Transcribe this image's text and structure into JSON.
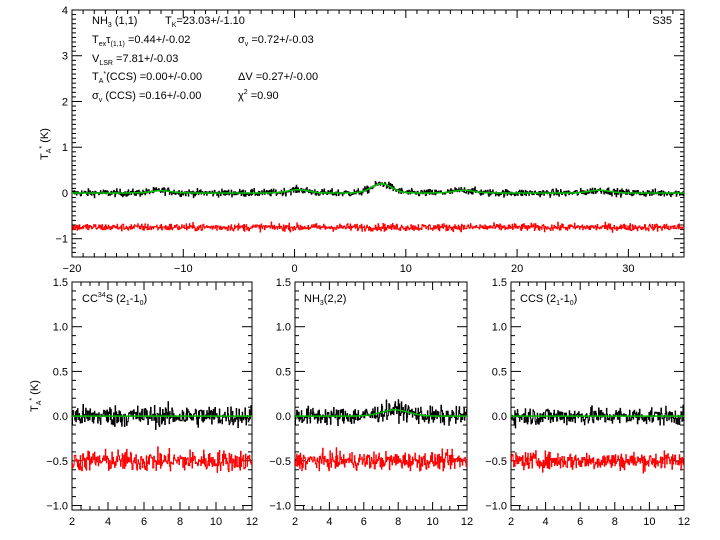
{
  "chart_data": [
    {
      "type": "line",
      "panel": "top",
      "source": "S35",
      "xlabel": "",
      "ylabel": "T_A* (K)",
      "xlim": [
        -20,
        35
      ],
      "ylim": [
        -1.4,
        4
      ],
      "xticks": [
        -20,
        -10,
        0,
        10,
        20,
        30
      ],
      "yticks": [
        -1,
        0,
        1,
        2,
        3,
        4
      ],
      "annotations": {
        "line": "NH",
        "line_sub": "3",
        "line_tail": " (1,1)",
        "tk": "T",
        "tk_sub": "K",
        "tk_val": "=23.03+/-1.10",
        "tex": "T",
        "tex_sub": "ex",
        "tau": "τ",
        "tau_sub": "(1,1)",
        "tex_val": " =0.44+/-0.02",
        "sigv": "σ",
        "sigv_sub": "v",
        "sigv_val": " =0.72+/-0.03",
        "vlsr": "V",
        "vlsr_sub": "LSR",
        "vlsr_val": " =7.81+/-0.03",
        "ta_ccs": "T",
        "ta_ccs_sub": "A",
        "ta_ccs_sup": "*",
        "ta_ccs_val": "(CCS) =0.00+/-0.00",
        "dv": "ΔV =0.27+/-0.00",
        "sig_ccs": "σ",
        "sig_ccs_sub": "v",
        "sig_ccs_val": " (CCS) =0.16+/-0.00",
        "chi": "χ",
        "chi_sup": "2",
        "chi_val": " =0.90"
      },
      "series": [
        {
          "name": "spectrum",
          "color": "#000000",
          "baseline": 0.0,
          "noise_rms": 0.04
        },
        {
          "name": "fit",
          "color": "#00c000",
          "components": [
            {
              "v": -12.0,
              "amp": 0.05,
              "width": 0.9
            },
            {
              "v": 0.3,
              "amp": 0.07,
              "width": 0.9
            },
            {
              "v": 7.81,
              "amp": 0.2,
              "width": 0.9
            },
            {
              "v": 15.2,
              "amp": 0.06,
              "width": 0.9
            },
            {
              "v": 27.4,
              "amp": 0.06,
              "width": 0.9
            }
          ]
        },
        {
          "name": "residual",
          "color": "#ff0000",
          "baseline": -0.75,
          "noise_rms": 0.04
        }
      ]
    },
    {
      "type": "line",
      "panel": "bottom-1",
      "title_main": "CC",
      "title_sup": "34",
      "title_mid": "S (2",
      "title_sub1": "1",
      "title_dash": "-1",
      "title_sub2": "0",
      "title_end": ")",
      "ylabel": "T_A* (K)",
      "xlim": [
        2,
        12
      ],
      "ylim": [
        -1.05,
        1.5
      ],
      "xticks": [
        2,
        4,
        6,
        8,
        10,
        12
      ],
      "yticks": [
        "-1.0",
        "-0.5",
        "0.0",
        "0.5",
        "1.0",
        "1.5"
      ],
      "series": [
        {
          "name": "spectrum",
          "color": "#000000",
          "baseline": 0.0,
          "noise_rms": 0.06
        },
        {
          "name": "fit",
          "color": "#00c000",
          "components": []
        },
        {
          "name": "residual",
          "color": "#ff0000",
          "baseline": -0.5,
          "noise_rms": 0.06
        }
      ]
    },
    {
      "type": "line",
      "panel": "bottom-2",
      "title_main": "NH",
      "title_sup": "",
      "title_mid": "",
      "title_sub1": "3",
      "title_dash": "(2,2)",
      "title_sub2": "",
      "title_end": "",
      "xlim": [
        2,
        12
      ],
      "ylim": [
        -1.05,
        1.5
      ],
      "xticks": [
        2,
        4,
        6,
        8,
        10,
        12
      ],
      "yticks": [
        "-1.0",
        "-0.5",
        "0.0",
        "0.5",
        "1.0",
        "1.5"
      ],
      "series": [
        {
          "name": "spectrum",
          "color": "#000000",
          "baseline": 0.0,
          "noise_rms": 0.05
        },
        {
          "name": "fit",
          "color": "#00c000",
          "components": [
            {
              "v": 7.81,
              "amp": 0.07,
              "width": 0.8
            }
          ]
        },
        {
          "name": "residual",
          "color": "#ff0000",
          "baseline": -0.5,
          "noise_rms": 0.05
        }
      ]
    },
    {
      "type": "line",
      "panel": "bottom-3",
      "title_main": "CCS (2",
      "title_sup": "",
      "title_mid": "",
      "title_sub1": "1",
      "title_dash": "-1",
      "title_sub2": "0",
      "title_end": ")",
      "xlim": [
        2,
        12
      ],
      "ylim": [
        -1.05,
        1.5
      ],
      "xticks": [
        2,
        4,
        6,
        8,
        10,
        12
      ],
      "yticks": [
        "-1.0",
        "-0.5",
        "0.0",
        "0.5",
        "1.0",
        "1.5"
      ],
      "series": [
        {
          "name": "spectrum",
          "color": "#000000",
          "baseline": 0.0,
          "noise_rms": 0.05
        },
        {
          "name": "fit",
          "color": "#00c000",
          "components": []
        },
        {
          "name": "residual",
          "color": "#ff0000",
          "baseline": -0.5,
          "noise_rms": 0.05
        }
      ]
    }
  ],
  "labels": {
    "source": "S35",
    "ylabel_T": "T",
    "ylabel_A": "A",
    "ylabel_star": "*",
    "ylabel_K": " (K)"
  }
}
